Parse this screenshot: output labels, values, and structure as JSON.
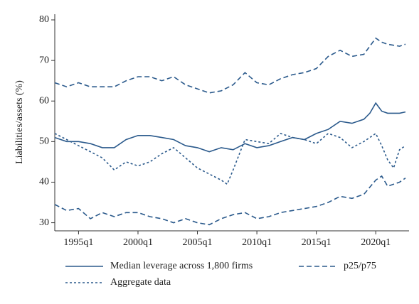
{
  "chart_data": {
    "type": "line",
    "y_label": "Liabilities/assets (%)",
    "xlim": [
      1993,
      2022.8
    ],
    "xticks": [
      {
        "value": 1995,
        "label": "1995q1"
      },
      {
        "value": 2000,
        "label": "2000q1"
      },
      {
        "value": 2005,
        "label": "2005q1"
      },
      {
        "value": 2010,
        "label": "2010q1"
      },
      {
        "value": 2015,
        "label": "2015q1"
      },
      {
        "value": 2020,
        "label": "2020q1"
      }
    ],
    "ylim": [
      28,
      81.4
    ],
    "yticks": [
      30,
      40,
      50,
      60,
      70,
      80
    ],
    "series": [
      {
        "name": "Median leverage across 1,800 firms",
        "color": "#2b5a8c",
        "style": "solid",
        "x": [
          1993,
          1994,
          1995,
          1996,
          1997,
          1998,
          1999,
          2000,
          2001,
          2002,
          2003,
          2004,
          2005,
          2006,
          2007,
          2008,
          2009,
          2010,
          2011,
          2012,
          2013,
          2014,
          2015,
          2016,
          2017,
          2018,
          2019,
          2019.5,
          2020,
          2020.5,
          2021,
          2022,
          2022.5
        ],
        "values": [
          51,
          50,
          50,
          49.5,
          48.5,
          48.5,
          50.5,
          51.5,
          51.5,
          51,
          50.5,
          49,
          48.5,
          47.5,
          48.5,
          48,
          49.5,
          48.5,
          49,
          50,
          51,
          50.5,
          52,
          53,
          55,
          54.5,
          55.5,
          57,
          59.5,
          57.5,
          57,
          57,
          57.3
        ]
      },
      {
        "name": "p25/p75",
        "color": "#2b5a8c",
        "style": "dashed",
        "x": [
          1993,
          1994,
          1995,
          1996,
          1997,
          1998,
          1999,
          2000,
          2001,
          2002,
          2003,
          2004,
          2005,
          2006,
          2007,
          2008,
          2009,
          2010,
          2011,
          2012,
          2013,
          2014,
          2015,
          2016,
          2017,
          2018,
          2019,
          2020,
          2020.5,
          2021,
          2022,
          2022.5
        ],
        "lower": [
          34.5,
          33,
          33.5,
          31,
          32.5,
          31.5,
          32.5,
          32.5,
          31.5,
          31,
          30,
          31,
          30,
          29.5,
          31,
          32,
          32.5,
          31,
          31.5,
          32.5,
          33,
          33.5,
          34,
          35,
          36.5,
          36,
          37,
          40.5,
          41.5,
          39,
          40,
          41
        ],
        "upper": [
          64.5,
          63.5,
          64.5,
          63.5,
          63.5,
          63.5,
          65,
          66,
          66,
          65,
          66,
          64,
          63,
          62,
          62.5,
          64,
          67,
          64.5,
          64,
          65.5,
          66.5,
          67,
          68,
          71,
          72.5,
          71,
          71.5,
          75.5,
          74.5,
          74,
          73.5,
          74
        ]
      },
      {
        "name": "Aggregate data",
        "color": "#2b5a8c",
        "style": "dotted",
        "x": [
          1993,
          1994,
          1995,
          1996,
          1997,
          1998,
          1999,
          2000,
          2001,
          2002,
          2003,
          2004,
          2005,
          2006,
          2007,
          2007.5,
          2008,
          2009,
          2010,
          2011,
          2012,
          2013,
          2014,
          2015,
          2016,
          2017,
          2018,
          2019,
          2020,
          2020.5,
          2021,
          2021.5,
          2022,
          2022.5
        ],
        "values": [
          52,
          50.5,
          49,
          47.5,
          46,
          43,
          45,
          44,
          45,
          47,
          48.5,
          46,
          43.5,
          42,
          40.5,
          39.5,
          43,
          50.5,
          50,
          49.5,
          52,
          51,
          50.5,
          49.5,
          52,
          51,
          48.5,
          50,
          52,
          49,
          45.5,
          43.5,
          48,
          49
        ]
      }
    ]
  }
}
